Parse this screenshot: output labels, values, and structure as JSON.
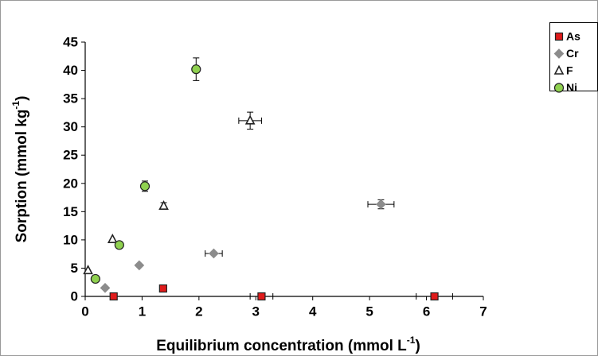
{
  "chart_data": {
    "type": "scatter",
    "xlabel": [
      "Equilibrium concentration (mmol L",
      "-1",
      ")"
    ],
    "ylabel": [
      "Sorption (mmol kg",
      "-1",
      ")"
    ],
    "xlim": [
      0,
      7
    ],
    "xticks": [
      0,
      1,
      2,
      3,
      4,
      5,
      6,
      7
    ],
    "ylim": [
      0,
      45
    ],
    "yticks": [
      0,
      5,
      10,
      15,
      20,
      25,
      30,
      35,
      40,
      45
    ],
    "grid": false,
    "legend": "right",
    "series": [
      {
        "name": "As",
        "color": "#e01b1b",
        "marker": "square",
        "x": [
          0.5,
          1.37,
          3.1,
          6.14
        ],
        "values": [
          0,
          1.4,
          0,
          0
        ],
        "xerr": [
          0,
          0,
          0.2,
          0.32
        ],
        "yerr": [
          0,
          0,
          0,
          0
        ]
      },
      {
        "name": "Cr",
        "color": "#8c8c8c",
        "marker": "diamond",
        "x": [
          0.35,
          0.95,
          2.26,
          5.2
        ],
        "values": [
          1.5,
          5.5,
          7.6,
          16.3
        ],
        "xerr": [
          0,
          0,
          0.15,
          0.23
        ],
        "yerr": [
          0,
          0,
          0,
          0.8
        ]
      },
      {
        "name": "F",
        "color": "#ffffff",
        "marker": "triangle",
        "x": [
          0.05,
          0.48,
          1.38,
          2.9
        ],
        "values": [
          4.6,
          10.1,
          16,
          31.1
        ],
        "xerr": [
          0,
          0,
          0,
          0.2
        ],
        "yerr": [
          0,
          0,
          0.6,
          1.5
        ]
      },
      {
        "name": "Ni",
        "color": "#8fd14f",
        "marker": "circle",
        "x": [
          0.18,
          0.6,
          1.05,
          1.95
        ],
        "values": [
          3.1,
          9.1,
          19.5,
          40.2
        ],
        "xerr": [
          0,
          0,
          0,
          0
        ],
        "yerr": [
          0,
          0,
          0.9,
          2
        ]
      }
    ]
  }
}
